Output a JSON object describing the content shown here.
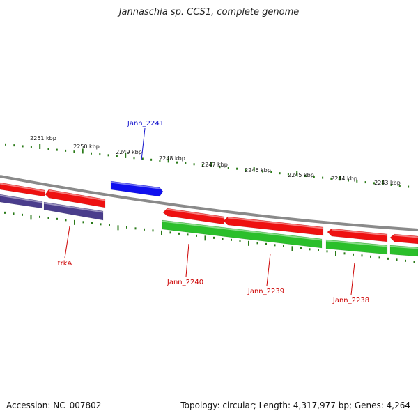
{
  "header": {
    "title": "Jannaschia sp. CCS1, complete genome"
  },
  "footer": {
    "accession": "Accession: NC_007802",
    "topology": "Topology: circular; Length: 4,317,977 bp; Genes: 4,264"
  },
  "colors": {
    "backbone": "#8a8a8a",
    "tick": "#2a7a18",
    "gene_red": "#ee1111",
    "gene_green": "#2bbf2b",
    "gene_purple": "#4a3d8c",
    "gene_blue": "#1010ee",
    "label_blue": "#1010cc",
    "label_red": "#cc0000"
  },
  "scale": {
    "labels": [
      "2251 kbp",
      "2250 kbp",
      "2249 kbp",
      "2248 kbp",
      "2247 kbp",
      "2246 kbp",
      "2245 kbp",
      "2244 kbp",
      "2243 kbp"
    ]
  },
  "gene_labels": [
    {
      "name": "Jann_2241",
      "color": "blue"
    },
    {
      "name": "trkA",
      "color": "red"
    },
    {
      "name": "Jann_2240",
      "color": "red"
    },
    {
      "name": "Jann_2239",
      "color": "red"
    },
    {
      "name": "Jann_2238",
      "color": "red"
    }
  ]
}
